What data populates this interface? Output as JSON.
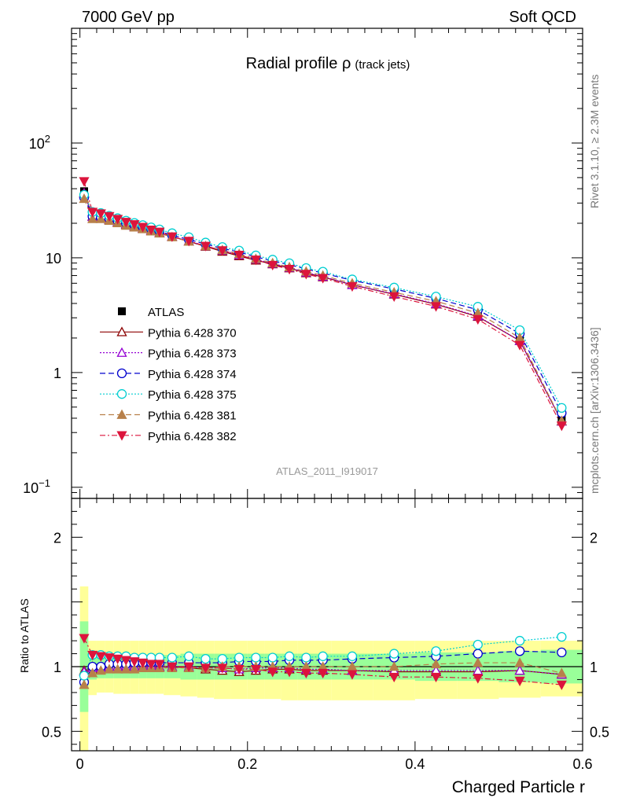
{
  "header": {
    "left": "7000 GeV pp",
    "right": "Soft QCD"
  },
  "side_text": {
    "rivet": "Rivet 3.1.10, ≥ 2.3M events",
    "mcplots": "mcplots.cern.ch [arXiv:1306.3436]"
  },
  "chart_data": {
    "type": "line",
    "title": "Radial profile ρ",
    "title_suffix": "(track jets)",
    "analysis_label": "ATLAS_2011_I919017",
    "xlabel": "Charged Particle r",
    "ylabel_ratio": "Ratio to ATLAS",
    "y_scale": "log",
    "xlim": [
      -0.01,
      0.6
    ],
    "ylim": [
      0.08,
      1000
    ],
    "ratio_ylim": [
      0.35,
      2.3
    ],
    "x_ticks": [
      {
        "v": 0,
        "label": "0"
      },
      {
        "v": 0.2,
        "label": "0.2"
      },
      {
        "v": 0.4,
        "label": "0.4"
      },
      {
        "v": 0.6,
        "label": "0.6"
      }
    ],
    "y_ticks": [
      {
        "v": 0.1,
        "base": "10",
        "exp": "−1"
      },
      {
        "v": 1,
        "base": "1",
        "exp": ""
      },
      {
        "v": 10,
        "base": "10",
        "exp": ""
      },
      {
        "v": 100,
        "base": "10",
        "exp": "2"
      }
    ],
    "ratio_ticks": [
      {
        "v": 0.5,
        "label": "0.5"
      },
      {
        "v": 1,
        "label": "1"
      },
      {
        "v": 2,
        "label": "2"
      }
    ],
    "x": [
      0.005,
      0.015,
      0.025,
      0.035,
      0.045,
      0.055,
      0.065,
      0.075,
      0.085,
      0.095,
      0.11,
      0.13,
      0.15,
      0.17,
      0.19,
      0.21,
      0.23,
      0.25,
      0.27,
      0.29,
      0.325,
      0.375,
      0.425,
      0.475,
      0.525,
      0.575
    ],
    "x_edges": [
      0,
      0.01,
      0.02,
      0.03,
      0.04,
      0.05,
      0.06,
      0.07,
      0.08,
      0.09,
      0.1,
      0.12,
      0.14,
      0.16,
      0.18,
      0.2,
      0.22,
      0.24,
      0.26,
      0.28,
      0.3,
      0.35,
      0.4,
      0.45,
      0.5,
      0.55,
      0.6
    ],
    "data": {
      "name": "ATLAS",
      "color": "#000000",
      "values": [
        38,
        23,
        22.5,
        21.5,
        20.5,
        19.5,
        18.8,
        18,
        17.2,
        16.5,
        15.3,
        14,
        12.8,
        11.7,
        10.8,
        9.8,
        9,
        8.3,
        7.6,
        7,
        6,
        5,
        4.1,
        3.2,
        1.95,
        0.4
      ],
      "band_inner": [
        [
          0.65,
          1.35
        ],
        [
          0.9,
          1.1
        ],
        [
          0.91,
          1.09
        ],
        [
          0.91,
          1.09
        ],
        [
          0.91,
          1.09
        ],
        [
          0.91,
          1.09
        ],
        [
          0.91,
          1.09
        ],
        [
          0.91,
          1.09
        ],
        [
          0.91,
          1.09
        ],
        [
          0.91,
          1.09
        ],
        [
          0.91,
          1.09
        ],
        [
          0.9,
          1.1
        ],
        [
          0.9,
          1.1
        ],
        [
          0.9,
          1.1
        ],
        [
          0.9,
          1.1
        ],
        [
          0.9,
          1.1
        ],
        [
          0.9,
          1.1
        ],
        [
          0.9,
          1.1
        ],
        [
          0.9,
          1.1
        ],
        [
          0.9,
          1.1
        ],
        [
          0.9,
          1.1
        ],
        [
          0.9,
          1.1
        ],
        [
          0.89,
          1.11
        ],
        [
          0.89,
          1.11
        ],
        [
          0.88,
          1.12
        ],
        [
          0.87,
          1.13
        ]
      ],
      "band_outer": [
        [
          0.35,
          1.62
        ],
        [
          0.78,
          1.2
        ],
        [
          0.8,
          1.2
        ],
        [
          0.8,
          1.2
        ],
        [
          0.79,
          1.2
        ],
        [
          0.79,
          1.2
        ],
        [
          0.79,
          1.2
        ],
        [
          0.79,
          1.2
        ],
        [
          0.79,
          1.2
        ],
        [
          0.79,
          1.2
        ],
        [
          0.78,
          1.2
        ],
        [
          0.77,
          1.2
        ],
        [
          0.76,
          1.2
        ],
        [
          0.75,
          1.2
        ],
        [
          0.75,
          1.2
        ],
        [
          0.75,
          1.2
        ],
        [
          0.75,
          1.2
        ],
        [
          0.74,
          1.2
        ],
        [
          0.74,
          1.2
        ],
        [
          0.74,
          1.2
        ],
        [
          0.74,
          1.2
        ],
        [
          0.74,
          1.2
        ],
        [
          0.75,
          1.2
        ],
        [
          0.75,
          1.2
        ],
        [
          0.76,
          1.2
        ],
        [
          0.77,
          1.2
        ]
      ]
    },
    "series": [
      {
        "name": "Pythia 6.428 370",
        "color": "#8b0000",
        "marker": "triangle-up-open",
        "dash": "",
        "ratio": [
          0.97,
          1.0,
          0.98,
          1.0,
          1.0,
          1.0,
          1.0,
          1.0,
          1.0,
          1.0,
          1.0,
          0.99,
          0.98,
          0.97,
          0.96,
          0.97,
          0.98,
          0.98,
          0.97,
          0.97,
          0.97,
          0.96,
          0.96,
          0.96,
          0.97,
          0.94
        ]
      },
      {
        "name": "Pythia 6.428 373",
        "color": "#9400d3",
        "marker": "triangle-up-open",
        "dash": "2 2",
        "ratio": [
          0.96,
          0.99,
          0.99,
          1.0,
          1.0,
          1.01,
          1.0,
          1.0,
          1.01,
          1.0,
          1.0,
          1.0,
          0.99,
          0.99,
          0.98,
          0.99,
          0.99,
          0.99,
          0.98,
          0.98,
          0.97,
          0.97,
          0.97,
          0.97,
          0.97,
          0.94
        ]
      },
      {
        "name": "Pythia 6.428 374",
        "color": "#0000cd",
        "marker": "circle-open",
        "dash": "7 4",
        "ratio": [
          0.88,
          1.0,
          1.0,
          1.02,
          1.02,
          1.02,
          1.03,
          1.03,
          1.03,
          1.03,
          1.03,
          1.03,
          1.03,
          1.03,
          1.04,
          1.04,
          1.04,
          1.05,
          1.05,
          1.05,
          1.06,
          1.07,
          1.08,
          1.1,
          1.12,
          1.11
        ]
      },
      {
        "name": "Pythia 6.428 375",
        "color": "#00ced1",
        "marker": "circle-open",
        "dash": "2 2",
        "ratio": [
          0.93,
          1.09,
          1.09,
          1.08,
          1.08,
          1.08,
          1.07,
          1.07,
          1.07,
          1.07,
          1.07,
          1.08,
          1.06,
          1.06,
          1.07,
          1.07,
          1.07,
          1.08,
          1.07,
          1.08,
          1.08,
          1.1,
          1.12,
          1.17,
          1.2,
          1.23
        ]
      },
      {
        "name": "Pythia 6.428 381",
        "color": "#b8804a",
        "marker": "triangle-up-filled",
        "dash": "7 4",
        "ratio": [
          0.86,
          0.95,
          0.97,
          0.98,
          0.98,
          0.98,
          0.98,
          0.99,
          0.99,
          0.99,
          0.99,
          0.99,
          0.99,
          1.0,
          1.0,
          1.0,
          1.0,
          1.0,
          1.0,
          1.0,
          1.0,
          1.0,
          1.02,
          1.03,
          1.03,
          0.95
        ]
      },
      {
        "name": "Pythia 6.428 382",
        "color": "#dc143c",
        "marker": "triangle-down-filled",
        "dash": "7 3 2 3",
        "ratio": [
          1.22,
          1.09,
          1.08,
          1.07,
          1.06,
          1.05,
          1.04,
          1.03,
          1.02,
          1.02,
          1.0,
          1.0,
          0.99,
          0.99,
          0.98,
          0.98,
          0.96,
          0.96,
          0.95,
          0.95,
          0.94,
          0.92,
          0.92,
          0.91,
          0.89,
          0.86
        ]
      }
    ],
    "legend_position": "middle-left"
  }
}
